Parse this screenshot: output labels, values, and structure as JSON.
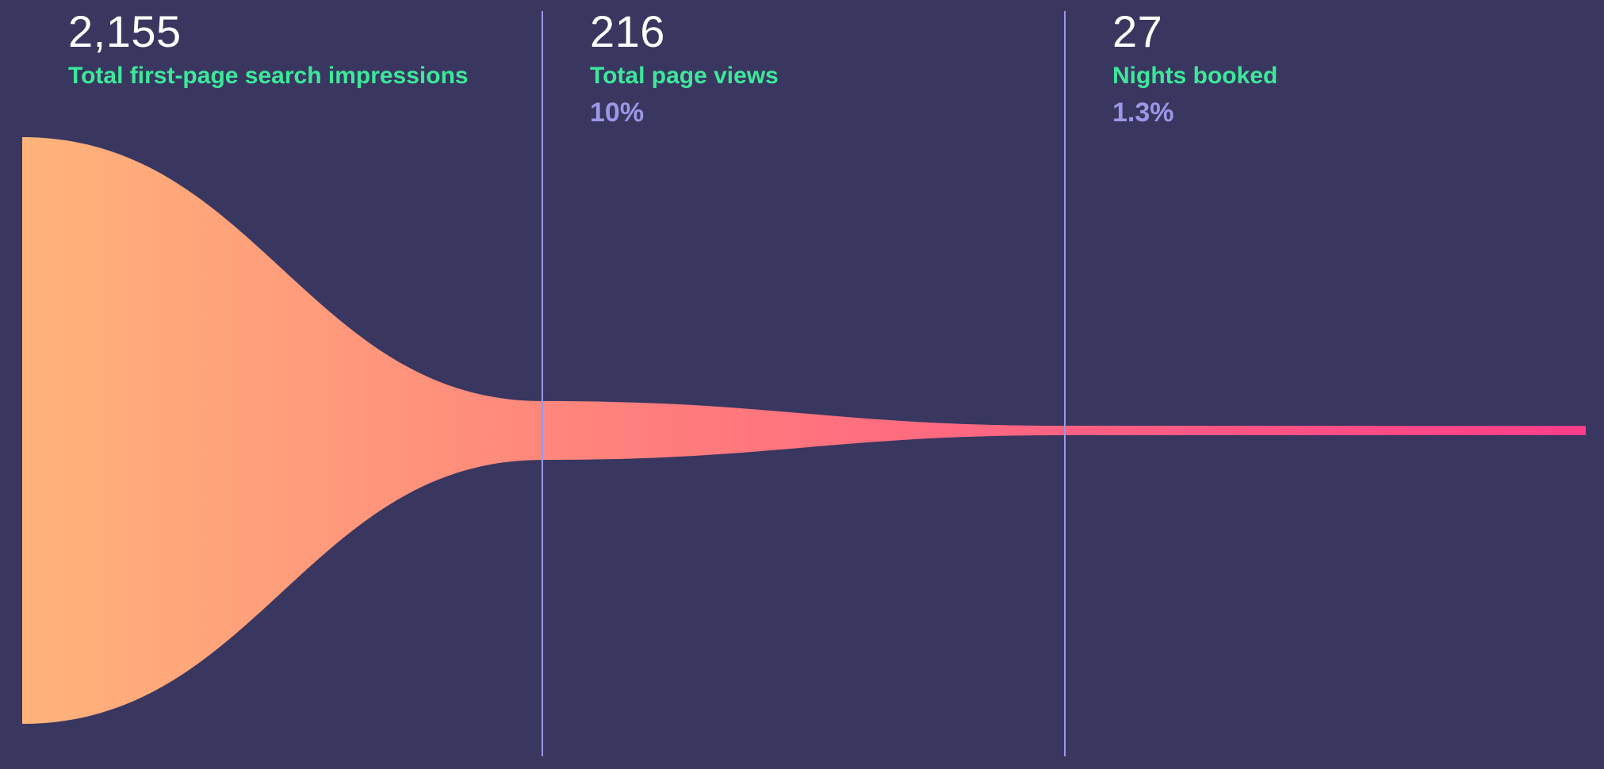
{
  "chart_data": {
    "type": "funnel",
    "stages": [
      {
        "value_label": "2,155",
        "value": 2155,
        "label": "Total first-page search impressions",
        "conversion": ""
      },
      {
        "value_label": "216",
        "value": 216,
        "label": "Total page views",
        "conversion": "10%"
      },
      {
        "value_label": "27",
        "value": 27,
        "label": "Nights booked",
        "conversion": "1.3%"
      }
    ],
    "colors": {
      "background": "#393760",
      "label": "#3de89a",
      "percent": "#9c97e6",
      "value": "#ffffff",
      "divider": "#9c97e6",
      "gradient_start": "#ffb47a",
      "gradient_mid": "#ff7c7c",
      "gradient_end": "#ff3d8a"
    }
  }
}
